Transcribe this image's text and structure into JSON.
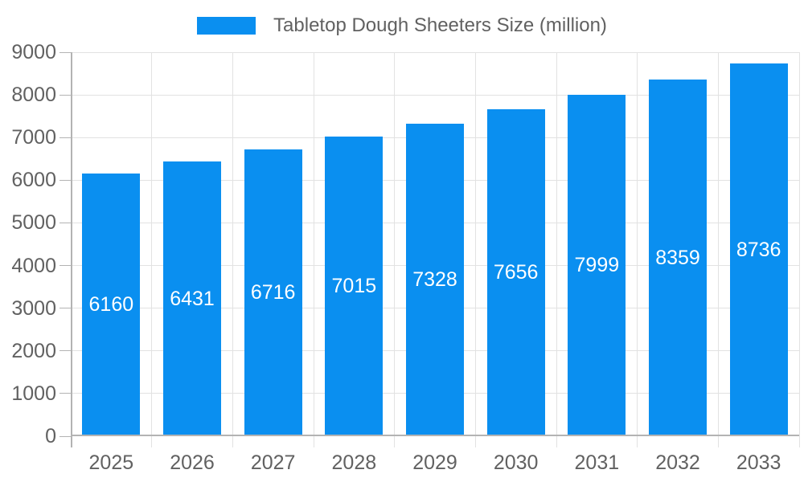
{
  "chart_data": {
    "type": "bar",
    "title": "",
    "xlabel": "",
    "ylabel": "",
    "categories": [
      "2025",
      "2026",
      "2027",
      "2028",
      "2029",
      "2030",
      "2031",
      "2032",
      "2033"
    ],
    "series": [
      {
        "name": "Tabletop Dough Sheeters Size (million)",
        "values": [
          6160,
          6431,
          6716,
          7015,
          7328,
          7656,
          7999,
          8359,
          8736
        ]
      }
    ],
    "ylim": [
      0,
      9000
    ],
    "ytick_step": 1000,
    "grid": true,
    "legend_position": "top",
    "bar_color": "#0a8ff0",
    "data_label_color": "#ffffff",
    "text_color": "#616161",
    "grid_color": "#e2e2e2",
    "axis_line_color": "#b3b3b3",
    "background_color": "#ffffff"
  }
}
